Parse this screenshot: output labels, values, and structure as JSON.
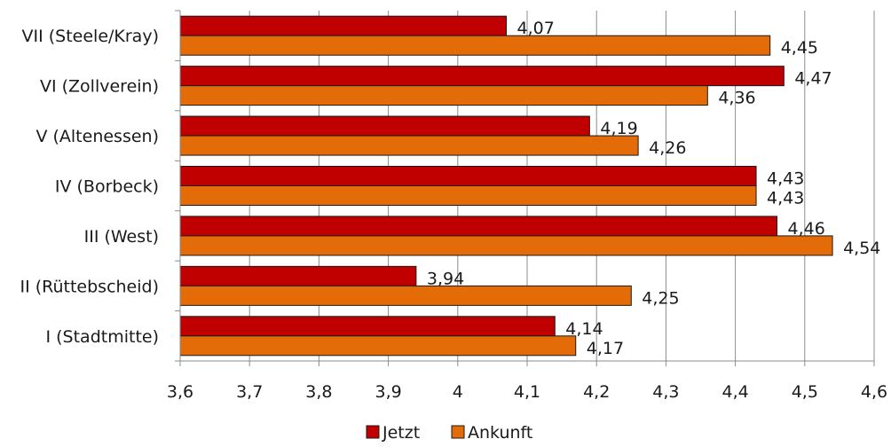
{
  "chart_data": {
    "type": "bar",
    "orientation": "horizontal",
    "categories": [
      "VII (Steele/Kray)",
      "VI (Zollverein)",
      "V (Altenessen)",
      "IV (Borbeck)",
      "III (West)",
      "II (Rüttebscheid)",
      "I (Stadtmitte)"
    ],
    "series": [
      {
        "name": "Jetzt",
        "color": "#c00000",
        "values": [
          4.07,
          4.47,
          4.19,
          4.43,
          4.46,
          3.94,
          4.14
        ],
        "labels": [
          "4,07",
          "4,47",
          "4,19",
          "4,43",
          "4,46",
          "3,94",
          "4,14"
        ]
      },
      {
        "name": "Ankunft",
        "color": "#e36c09",
        "values": [
          4.45,
          4.36,
          4.26,
          4.43,
          4.54,
          4.25,
          4.17
        ],
        "labels": [
          "4,45",
          "4,36",
          "4,26",
          "4,43",
          "4,54",
          "4,25",
          "4,17"
        ]
      }
    ],
    "xlim": [
      3.6,
      4.6
    ],
    "x_ticks": [
      3.6,
      3.7,
      3.8,
      3.9,
      4.0,
      4.1,
      4.2,
      4.3,
      4.4,
      4.5,
      4.6
    ],
    "x_tick_labels": [
      "3,6",
      "3,7",
      "3,8",
      "3,9",
      "4",
      "4,1",
      "4,2",
      "4,3",
      "4,4",
      "4,5",
      "4,6"
    ],
    "grid": true,
    "legend_position": "bottom"
  }
}
